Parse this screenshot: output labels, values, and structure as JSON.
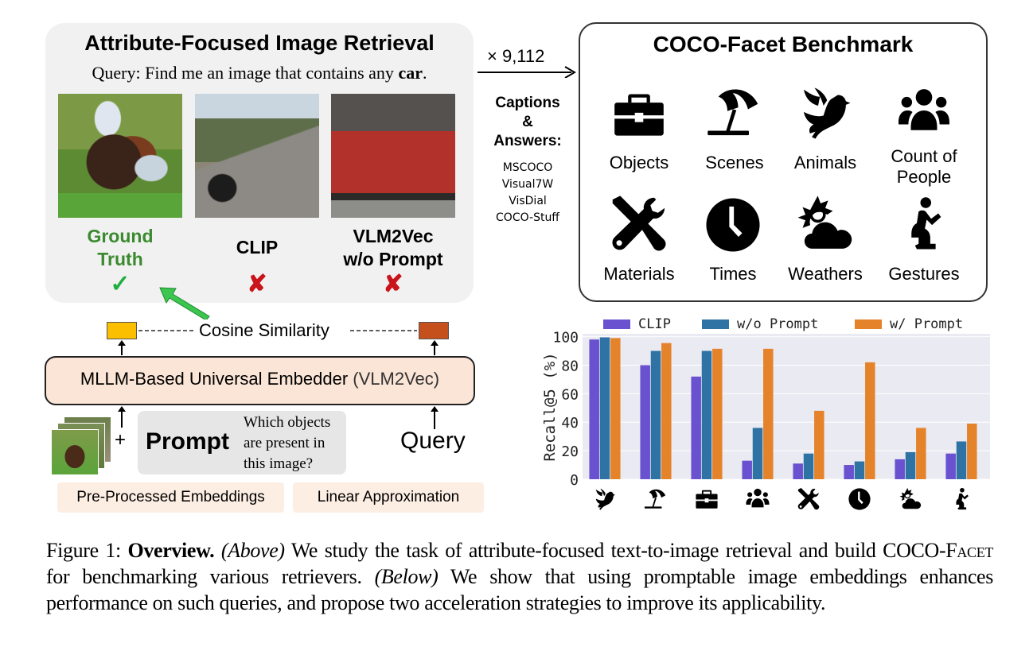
{
  "retrieval_panel": {
    "title": "Attribute-Focused Image Retrieval",
    "query_prefix": "Query: Find me an image that contains any ",
    "query_keyword": "car",
    "query_suffix": ".",
    "results": [
      {
        "label_line1": "Ground",
        "label_line2": "Truth",
        "mark": "✓",
        "status": "correct",
        "image": "horse race with car in background"
      },
      {
        "label_line1": "CLIP",
        "label_line2": "",
        "mark": "✘",
        "status": "wrong",
        "image": "motorcycle on country road"
      },
      {
        "label_line1": "VLM2Vec",
        "label_line2": "w/o Prompt",
        "mark": "✘",
        "status": "wrong",
        "image": "red train at station"
      }
    ]
  },
  "benchmark_link": {
    "count": "× 9,112",
    "sources_heading": [
      "Captions",
      "&",
      "Answers:"
    ],
    "sources": [
      "MSCOCO",
      "Visual7W",
      "VisDial",
      "COCO-Stuff"
    ]
  },
  "benchmark_panel": {
    "title": "COCO-Facet Benchmark",
    "facets": [
      {
        "label": "Objects",
        "icon": "briefcase-icon"
      },
      {
        "label": "Scenes",
        "icon": "beach-umbrella-icon"
      },
      {
        "label": "Animals",
        "icon": "bird-icon"
      },
      {
        "label": "Count of People",
        "label_line1": "Count of",
        "label_line2": "People",
        "icon": "people-group-icon"
      },
      {
        "label": "Materials",
        "icon": "tools-icon"
      },
      {
        "label": "Times",
        "icon": "clock-icon"
      },
      {
        "label": "Weathers",
        "icon": "sun-cloud-icon"
      },
      {
        "label": "Gestures",
        "icon": "praying-person-icon"
      }
    ]
  },
  "pipeline": {
    "similarity_label": "Cosine Similarity",
    "embedder_label": "MLLM-Based Universal Embedder ",
    "embedder_sub": "(VLM2Vec)",
    "plus": "+",
    "prompt_label": "Prompt",
    "prompt_text_lines": [
      "Which objects",
      "are present in",
      "this image?"
    ],
    "query_label": "Query",
    "accelerations": [
      "Pre-Processed Embeddings",
      "Linear Approximation"
    ],
    "colors": {
      "image_embedding": "#fbbf00",
      "query_embedding": "#c5501c",
      "embedder_fill": "#fbe5d6",
      "arrow_green": "#3cc650"
    }
  },
  "chart_data": {
    "type": "bar",
    "title": "",
    "xlabel": "",
    "ylabel": "Recall@5 (%)",
    "ylim": [
      0,
      102
    ],
    "yticks": [
      0,
      20,
      40,
      60,
      80,
      100
    ],
    "grid": true,
    "legend_position": "top",
    "categories": [
      "Animals",
      "Scenes",
      "Objects",
      "Count of People",
      "Materials",
      "Times",
      "Weathers",
      "Gestures"
    ],
    "category_icons": [
      "bird-icon",
      "beach-umbrella-icon",
      "briefcase-icon",
      "people-group-icon",
      "tools-icon",
      "clock-icon",
      "sun-cloud-icon",
      "praying-person-icon"
    ],
    "series": [
      {
        "name": "CLIP",
        "color": "#6a51d0",
        "values": [
          98,
          80,
          72,
          13,
          11,
          10,
          14,
          18
        ]
      },
      {
        "name": "w/o Prompt",
        "color": "#2e73a4",
        "values": [
          99.5,
          90,
          90,
          36,
          18,
          12.5,
          19,
          26.5
        ]
      },
      {
        "name": "w/ Prompt",
        "color": "#e5832b",
        "values": [
          99,
          95.5,
          91.5,
          91.5,
          48,
          82,
          36,
          39
        ]
      }
    ]
  },
  "caption": {
    "figure_label": "Figure 1: ",
    "bold": "Overview.",
    "above_tag": "(Above)",
    "part1": " We study the task of attribute-focused text-to-image retrieval and build COCO-",
    "smallcaps": "Facet",
    "part2": " for benchmarking various retrievers. ",
    "below_tag": "(Below)",
    "part3": " We show that using promptable image embeddings enhances performance on such queries, and propose two acceleration strategies to improve its applicability."
  }
}
